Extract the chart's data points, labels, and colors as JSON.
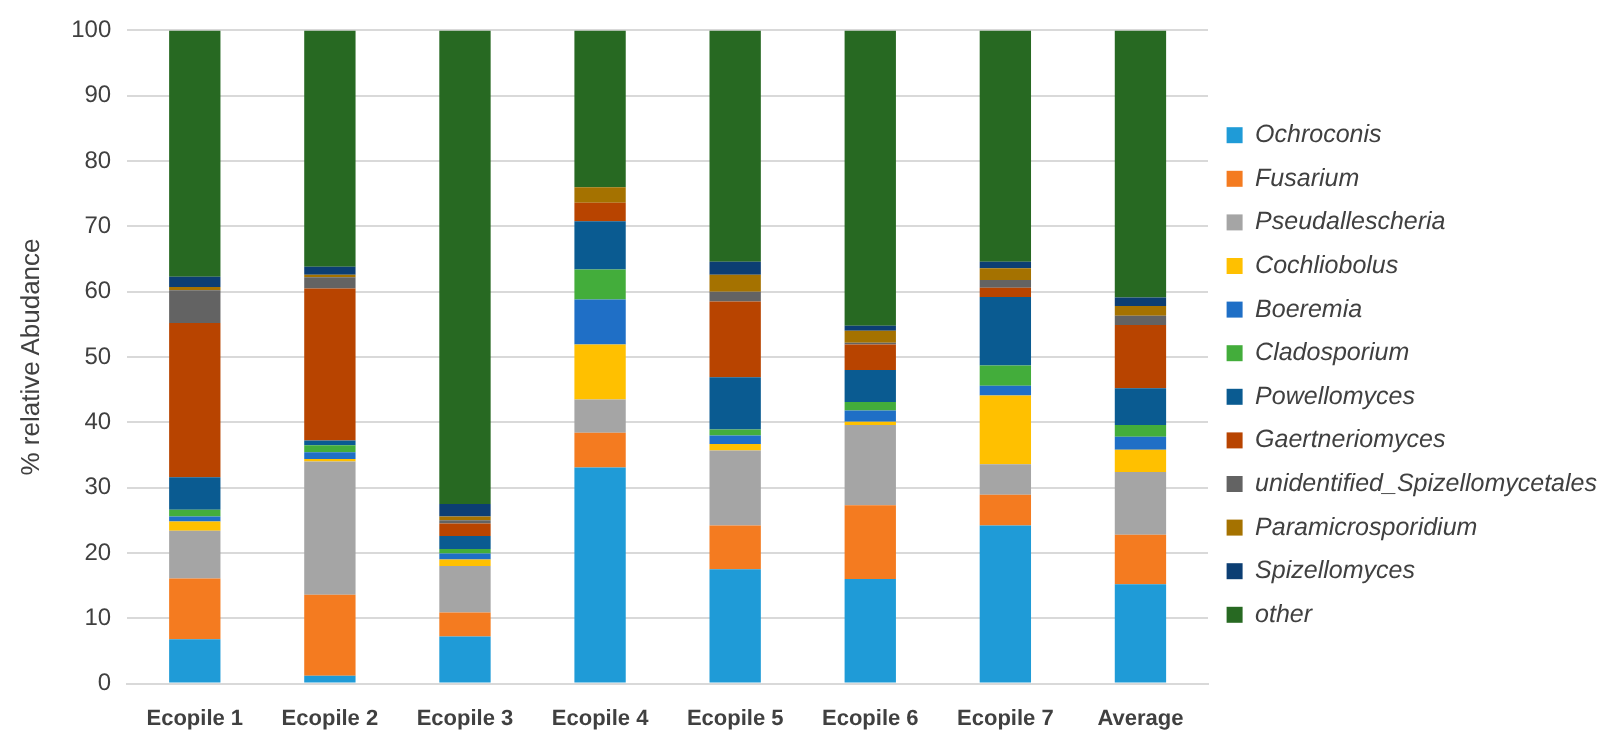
{
  "chart_data": {
    "type": "bar",
    "stacked": true,
    "ylabel": "% relative Abudance",
    "categories": [
      "Ecopile 1",
      "Ecopile 2",
      "Ecopile 3",
      "Ecopile 4",
      "Ecopile 5",
      "Ecopile 6",
      "Ecopile 7",
      "Average"
    ],
    "ylim": [
      0,
      100
    ],
    "yticks": [
      0,
      10,
      20,
      30,
      40,
      50,
      60,
      70,
      80,
      90,
      100
    ],
    "grid": "y",
    "legend": "right",
    "series": [
      {
        "name": "Ochroconis",
        "color": "#1f9bd7",
        "values": [
          6.8,
          1.2,
          7.2,
          33.1,
          17.5,
          16.0,
          24.2,
          15.2
        ]
      },
      {
        "name": "Fusarium",
        "color": "#f47b20",
        "values": [
          9.3,
          12.4,
          3.7,
          5.3,
          6.7,
          11.3,
          4.7,
          7.6
        ]
      },
      {
        "name": "Pseudallescheria",
        "color": "#a5a5a5",
        "values": [
          7.3,
          20.4,
          7.1,
          5.1,
          11.5,
          12.3,
          4.7,
          9.6
        ]
      },
      {
        "name": "Cochliobolus",
        "color": "#ffc000",
        "values": [
          1.4,
          0.4,
          1.0,
          8.4,
          1.0,
          0.5,
          10.5,
          3.4
        ]
      },
      {
        "name": "Boeremia",
        "color": "#1f6fc6",
        "values": [
          0.8,
          1.0,
          0.9,
          6.9,
          1.3,
          1.7,
          1.5,
          2.0
        ]
      },
      {
        "name": "Cladosporium",
        "color": "#43ad3b",
        "values": [
          1.0,
          1.1,
          0.7,
          4.6,
          0.9,
          1.3,
          3.1,
          1.8
        ]
      },
      {
        "name": "Powellomyces",
        "color": "#0a5b91",
        "values": [
          5.0,
          0.7,
          2.0,
          7.4,
          8.0,
          4.9,
          10.5,
          5.6
        ]
      },
      {
        "name": "Gaertneriomyces",
        "color": "#b84400",
        "values": [
          23.6,
          23.3,
          1.9,
          2.8,
          11.6,
          3.9,
          1.4,
          9.7
        ]
      },
      {
        "name": "unidentified_Spizellomycetales",
        "color": "#636363",
        "values": [
          5.0,
          1.7,
          0.5,
          0,
          1.5,
          0.3,
          1.2,
          1.4
        ]
      },
      {
        "name": "Paramicrosporidium",
        "color": "#a57200",
        "values": [
          0.5,
          0.4,
          0.6,
          2.4,
          2.6,
          1.8,
          1.8,
          1.5
        ]
      },
      {
        "name": "Spizellomyces",
        "color": "#0c3e73",
        "values": [
          1.6,
          1.2,
          1.9,
          0,
          2.0,
          0.8,
          1.0,
          1.3
        ]
      },
      {
        "name": "other",
        "color": "#276922",
        "values": [
          37.7,
          36.2,
          72.5,
          24.0,
          35.4,
          45.2,
          35.4,
          40.9
        ]
      }
    ]
  }
}
